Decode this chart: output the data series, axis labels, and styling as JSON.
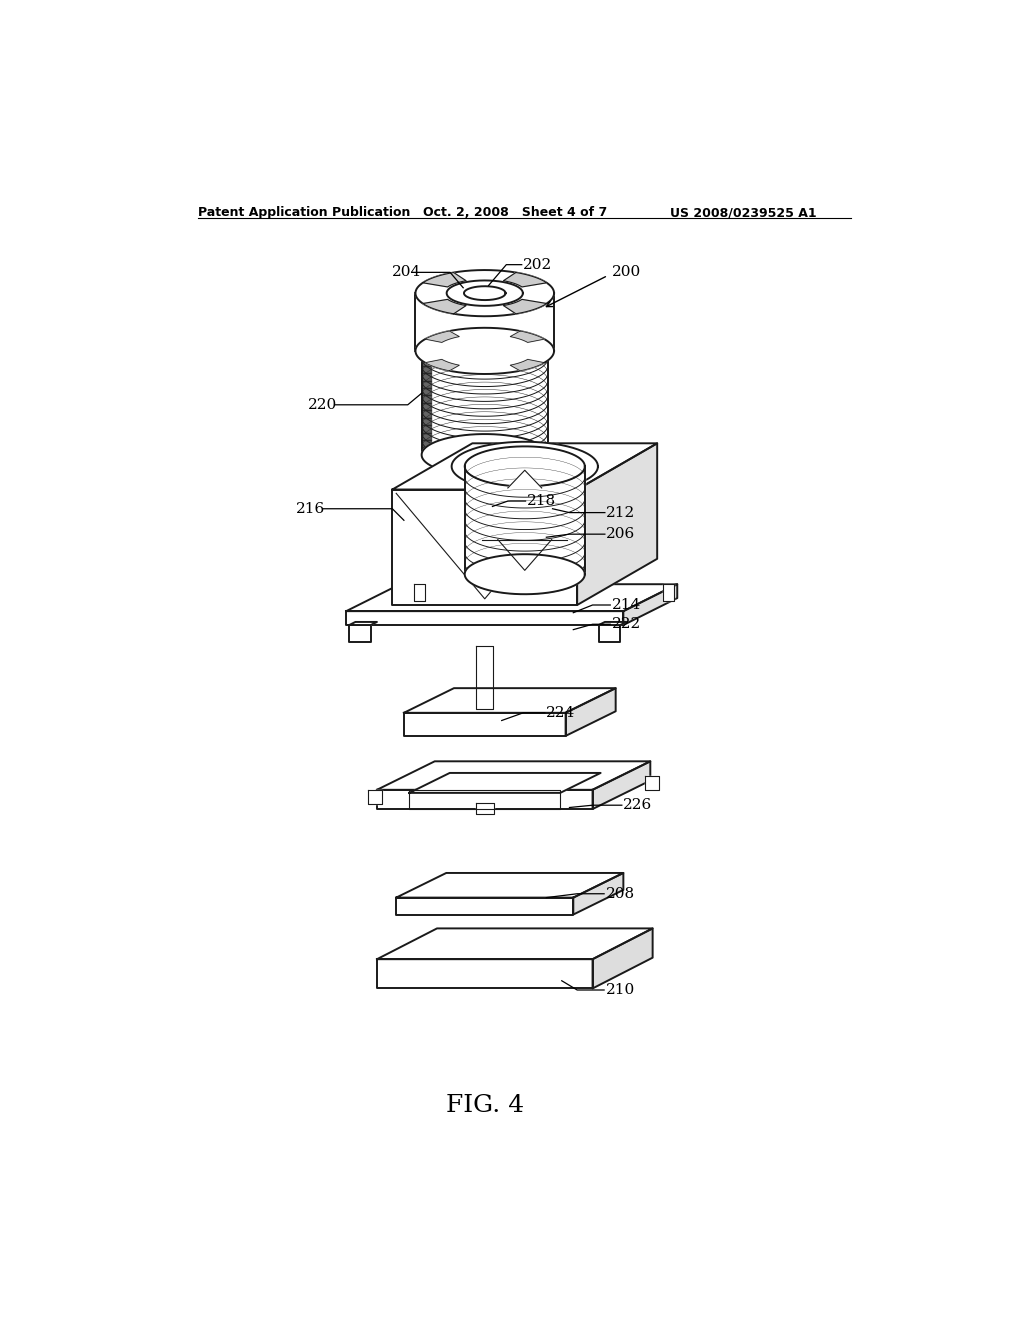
{
  "title_left": "Patent Application Publication",
  "title_center": "Oct. 2, 2008   Sheet 4 of 7",
  "title_right": "US 2008/0239525 A1",
  "fig_label": "FIG. 4",
  "bg_color": "#ffffff",
  "line_color": "#1a1a1a",
  "lw_main": 1.4,
  "lw_thin": 0.8,
  "font_size_header": 9,
  "font_size_label": 11,
  "font_size_fig": 18
}
